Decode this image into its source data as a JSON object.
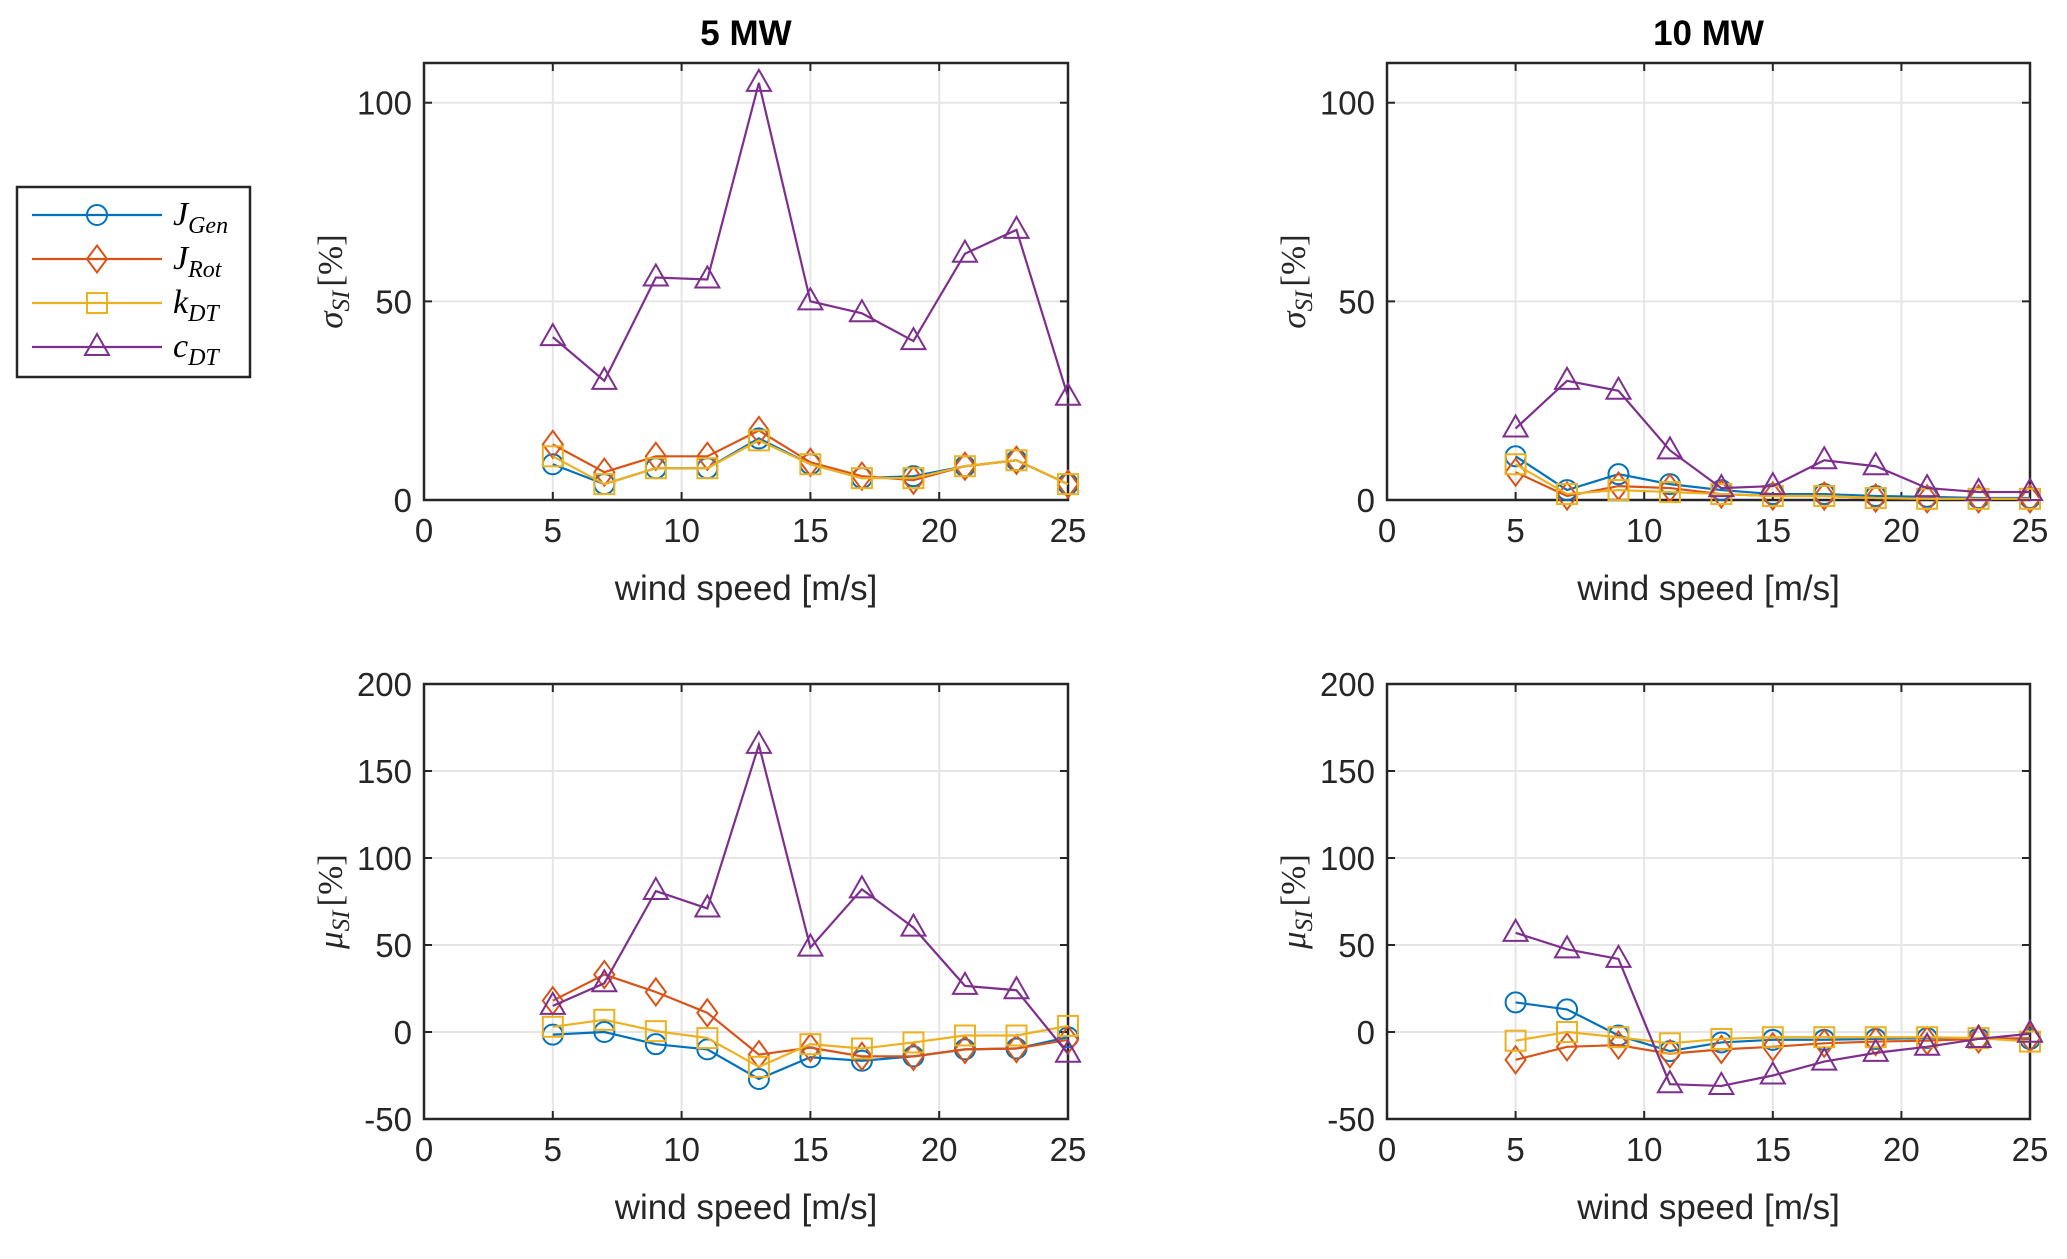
{
  "chart_data": [
    {
      "type": "line",
      "title": "5 MW",
      "xlabel": "wind speed [m/s]",
      "ylabel": "σ_SI [%]",
      "ylabel_symbol": "σ",
      "ylabel_sub": "SI",
      "ylabel_unit": "[%]",
      "xlim": [
        0,
        25
      ],
      "ylim": [
        0,
        110
      ],
      "xticks": [
        0,
        5,
        10,
        15,
        20,
        25
      ],
      "yticks": [
        0,
        50,
        100
      ],
      "grid": true,
      "x": [
        5,
        7,
        9,
        11,
        13,
        15,
        17,
        19,
        21,
        23,
        25
      ],
      "series": [
        {
          "name": "J_Gen",
          "values": [
            9,
            4,
            8,
            8,
            15.5,
            9,
            5.5,
            6,
            8.5,
            10,
            4
          ]
        },
        {
          "name": "J_Rot",
          "values": [
            14,
            7,
            11,
            11,
            17.5,
            9.5,
            6,
            5,
            8.5,
            10,
            4
          ]
        },
        {
          "name": "k_DT",
          "values": [
            11,
            4,
            8,
            8,
            15,
            9,
            5.5,
            5.5,
            8.5,
            10,
            4
          ]
        },
        {
          "name": "c_DT",
          "values": [
            41,
            30,
            56,
            55.5,
            105,
            50,
            47,
            40,
            62,
            68,
            26
          ]
        }
      ]
    },
    {
      "type": "line",
      "title": "10 MW",
      "xlabel": "wind speed [m/s]",
      "ylabel": "σ_SI [%]",
      "ylabel_symbol": "σ",
      "ylabel_sub": "SI",
      "ylabel_unit": "[%]",
      "xlim": [
        0,
        25
      ],
      "ylim": [
        0,
        110
      ],
      "xticks": [
        0,
        5,
        10,
        15,
        20,
        25
      ],
      "yticks": [
        0,
        50,
        100
      ],
      "grid": true,
      "x": [
        5,
        7,
        9,
        11,
        13,
        15,
        17,
        19,
        21,
        23,
        25
      ],
      "series": [
        {
          "name": "J_Gen",
          "values": [
            11,
            2.5,
            6.5,
            4,
            2.5,
            1.5,
            1.5,
            1,
            0.8,
            0.5,
            0.5
          ]
        },
        {
          "name": "J_Rot",
          "values": [
            7,
            1,
            3.5,
            3,
            1.5,
            1,
            1,
            0.5,
            0.3,
            0.3,
            0.3
          ]
        },
        {
          "name": "k_DT",
          "values": [
            9,
            1.5,
            2.5,
            2,
            1.5,
            1,
            1,
            0.5,
            0.3,
            0.3,
            0.3
          ]
        },
        {
          "name": "c_DT",
          "values": [
            18,
            30,
            27.5,
            12.5,
            3,
            3.5,
            10,
            8.5,
            3,
            2,
            2
          ]
        }
      ]
    },
    {
      "type": "line",
      "title": "",
      "xlabel": "wind speed [m/s]",
      "ylabel": "μ_SI [%]",
      "ylabel_symbol": "μ",
      "ylabel_sub": "SI",
      "ylabel_unit": "[%]",
      "xlim": [
        0,
        25
      ],
      "ylim": [
        -50,
        200
      ],
      "xticks": [
        0,
        5,
        10,
        15,
        20,
        25
      ],
      "yticks": [
        -50,
        0,
        50,
        100,
        150,
        200
      ],
      "grid": true,
      "x": [
        5,
        7,
        9,
        11,
        13,
        15,
        17,
        19,
        21,
        23,
        25
      ],
      "series": [
        {
          "name": "J_Gen",
          "values": [
            -1.5,
            0,
            -7,
            -10,
            -27,
            -14.5,
            -16.5,
            -14,
            -10,
            -9.5,
            -3
          ]
        },
        {
          "name": "J_Rot",
          "values": [
            18,
            33,
            23,
            11,
            -13,
            -9,
            -14,
            -14,
            -10,
            -9.5,
            -4.5
          ]
        },
        {
          "name": "k_DT",
          "values": [
            3,
            7,
            0.5,
            -3.5,
            -20,
            -7,
            -9.5,
            -6,
            -2,
            -2,
            3.5
          ]
        },
        {
          "name": "c_DT",
          "values": [
            15,
            28,
            81,
            71,
            165,
            48.5,
            82,
            60,
            26.5,
            24,
            -12.5
          ]
        }
      ]
    },
    {
      "type": "line",
      "title": "",
      "xlabel": "wind speed [m/s]",
      "ylabel": "μ_SI [%]",
      "ylabel_symbol": "μ",
      "ylabel_sub": "SI",
      "ylabel_unit": "[%]",
      "xlim": [
        0,
        25
      ],
      "ylim": [
        -50,
        200
      ],
      "xticks": [
        0,
        5,
        10,
        15,
        20,
        25
      ],
      "yticks": [
        -50,
        0,
        50,
        100,
        150,
        200
      ],
      "grid": true,
      "x": [
        5,
        7,
        9,
        11,
        13,
        15,
        17,
        19,
        21,
        23,
        25
      ],
      "series": [
        {
          "name": "J_Gen",
          "values": [
            17,
            13,
            -2,
            -11,
            -6,
            -4.5,
            -4.5,
            -4,
            -3.5,
            -3.5,
            -4
          ]
        },
        {
          "name": "J_Rot",
          "values": [
            -16,
            -8.5,
            -7.5,
            -12.5,
            -10,
            -8.5,
            -6.5,
            -5.5,
            -5,
            -4,
            -3.5
          ]
        },
        {
          "name": "k_DT",
          "values": [
            -5,
            0,
            -3,
            -6.5,
            -4,
            -3,
            -3,
            -3,
            -3,
            -3.5,
            -5.5
          ]
        },
        {
          "name": "c_DT",
          "values": [
            57,
            47.5,
            42,
            -30,
            -31,
            -25,
            -17,
            -12,
            -8.5,
            -4,
            -1
          ]
        }
      ]
    }
  ],
  "legend": {
    "placement": "left-of-top-left-panel",
    "entries": [
      {
        "series": "J_Gen",
        "base": "J",
        "sub": "Gen",
        "marker": "circle",
        "color": "#0072BD"
      },
      {
        "series": "J_Rot",
        "base": "J",
        "sub": "Rot",
        "marker": "diamond",
        "color": "#D95319"
      },
      {
        "series": "k_DT",
        "base": "k",
        "sub": "DT",
        "marker": "square",
        "color": "#EDB120"
      },
      {
        "series": "c_DT",
        "base": "c",
        "sub": "DT",
        "marker": "triangle",
        "color": "#7E2F8E"
      }
    ]
  },
  "colors": {
    "J_Gen": "#0072BD",
    "J_Rot": "#D95319",
    "k_DT": "#EDB120",
    "c_DT": "#7E2F8E",
    "grid": "#e5e5e5",
    "axis": "#262626"
  }
}
